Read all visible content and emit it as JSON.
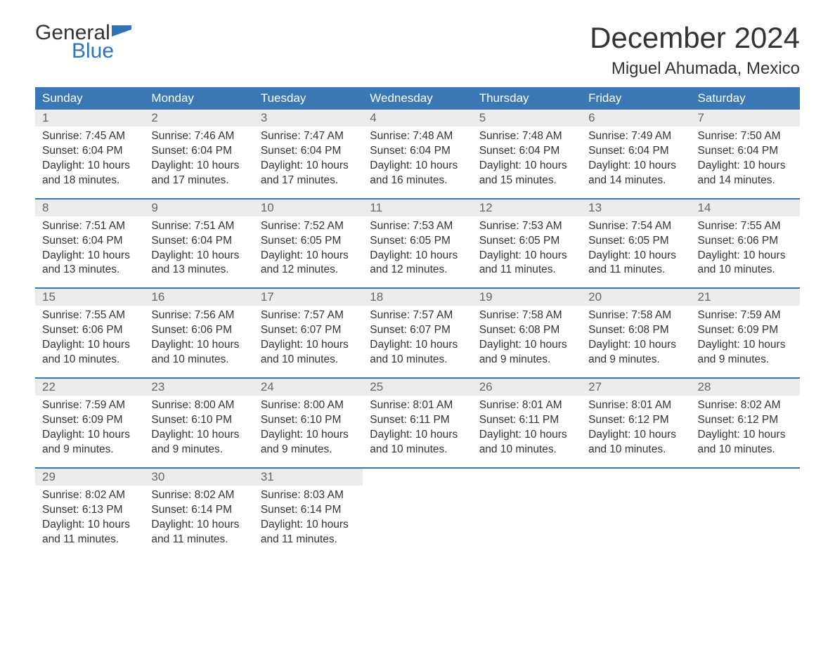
{
  "logo": {
    "word1": "General",
    "word2": "Blue",
    "accent_color": "#2f75b5",
    "text_color": "#333333"
  },
  "title": "December 2024",
  "location": "Miguel Ahumada, Mexico",
  "colors": {
    "header_bg": "#3a78b5",
    "header_text": "#ffffff",
    "daynum_bg": "#ececec",
    "daynum_text": "#666666",
    "body_text": "#333333",
    "rule": "#3a78b5",
    "page_bg": "#ffffff"
  },
  "day_headers": [
    "Sunday",
    "Monday",
    "Tuesday",
    "Wednesday",
    "Thursday",
    "Friday",
    "Saturday"
  ],
  "weeks": [
    [
      {
        "n": "1",
        "sr": "7:45 AM",
        "ss": "6:04 PM",
        "dl": "10 hours and 18 minutes."
      },
      {
        "n": "2",
        "sr": "7:46 AM",
        "ss": "6:04 PM",
        "dl": "10 hours and 17 minutes."
      },
      {
        "n": "3",
        "sr": "7:47 AM",
        "ss": "6:04 PM",
        "dl": "10 hours and 17 minutes."
      },
      {
        "n": "4",
        "sr": "7:48 AM",
        "ss": "6:04 PM",
        "dl": "10 hours and 16 minutes."
      },
      {
        "n": "5",
        "sr": "7:48 AM",
        "ss": "6:04 PM",
        "dl": "10 hours and 15 minutes."
      },
      {
        "n": "6",
        "sr": "7:49 AM",
        "ss": "6:04 PM",
        "dl": "10 hours and 14 minutes."
      },
      {
        "n": "7",
        "sr": "7:50 AM",
        "ss": "6:04 PM",
        "dl": "10 hours and 14 minutes."
      }
    ],
    [
      {
        "n": "8",
        "sr": "7:51 AM",
        "ss": "6:04 PM",
        "dl": "10 hours and 13 minutes."
      },
      {
        "n": "9",
        "sr": "7:51 AM",
        "ss": "6:04 PM",
        "dl": "10 hours and 13 minutes."
      },
      {
        "n": "10",
        "sr": "7:52 AM",
        "ss": "6:05 PM",
        "dl": "10 hours and 12 minutes."
      },
      {
        "n": "11",
        "sr": "7:53 AM",
        "ss": "6:05 PM",
        "dl": "10 hours and 12 minutes."
      },
      {
        "n": "12",
        "sr": "7:53 AM",
        "ss": "6:05 PM",
        "dl": "10 hours and 11 minutes."
      },
      {
        "n": "13",
        "sr": "7:54 AM",
        "ss": "6:05 PM",
        "dl": "10 hours and 11 minutes."
      },
      {
        "n": "14",
        "sr": "7:55 AM",
        "ss": "6:06 PM",
        "dl": "10 hours and 10 minutes."
      }
    ],
    [
      {
        "n": "15",
        "sr": "7:55 AM",
        "ss": "6:06 PM",
        "dl": "10 hours and 10 minutes."
      },
      {
        "n": "16",
        "sr": "7:56 AM",
        "ss": "6:06 PM",
        "dl": "10 hours and 10 minutes."
      },
      {
        "n": "17",
        "sr": "7:57 AM",
        "ss": "6:07 PM",
        "dl": "10 hours and 10 minutes."
      },
      {
        "n": "18",
        "sr": "7:57 AM",
        "ss": "6:07 PM",
        "dl": "10 hours and 10 minutes."
      },
      {
        "n": "19",
        "sr": "7:58 AM",
        "ss": "6:08 PM",
        "dl": "10 hours and 9 minutes."
      },
      {
        "n": "20",
        "sr": "7:58 AM",
        "ss": "6:08 PM",
        "dl": "10 hours and 9 minutes."
      },
      {
        "n": "21",
        "sr": "7:59 AM",
        "ss": "6:09 PM",
        "dl": "10 hours and 9 minutes."
      }
    ],
    [
      {
        "n": "22",
        "sr": "7:59 AM",
        "ss": "6:09 PM",
        "dl": "10 hours and 9 minutes."
      },
      {
        "n": "23",
        "sr": "8:00 AM",
        "ss": "6:10 PM",
        "dl": "10 hours and 9 minutes."
      },
      {
        "n": "24",
        "sr": "8:00 AM",
        "ss": "6:10 PM",
        "dl": "10 hours and 9 minutes."
      },
      {
        "n": "25",
        "sr": "8:01 AM",
        "ss": "6:11 PM",
        "dl": "10 hours and 10 minutes."
      },
      {
        "n": "26",
        "sr": "8:01 AM",
        "ss": "6:11 PM",
        "dl": "10 hours and 10 minutes."
      },
      {
        "n": "27",
        "sr": "8:01 AM",
        "ss": "6:12 PM",
        "dl": "10 hours and 10 minutes."
      },
      {
        "n": "28",
        "sr": "8:02 AM",
        "ss": "6:12 PM",
        "dl": "10 hours and 10 minutes."
      }
    ],
    [
      {
        "n": "29",
        "sr": "8:02 AM",
        "ss": "6:13 PM",
        "dl": "10 hours and 11 minutes."
      },
      {
        "n": "30",
        "sr": "8:02 AM",
        "ss": "6:14 PM",
        "dl": "10 hours and 11 minutes."
      },
      {
        "n": "31",
        "sr": "8:03 AM",
        "ss": "6:14 PM",
        "dl": "10 hours and 11 minutes."
      },
      null,
      null,
      null,
      null
    ]
  ],
  "labels": {
    "sunrise": "Sunrise: ",
    "sunset": "Sunset: ",
    "daylight": "Daylight: "
  }
}
